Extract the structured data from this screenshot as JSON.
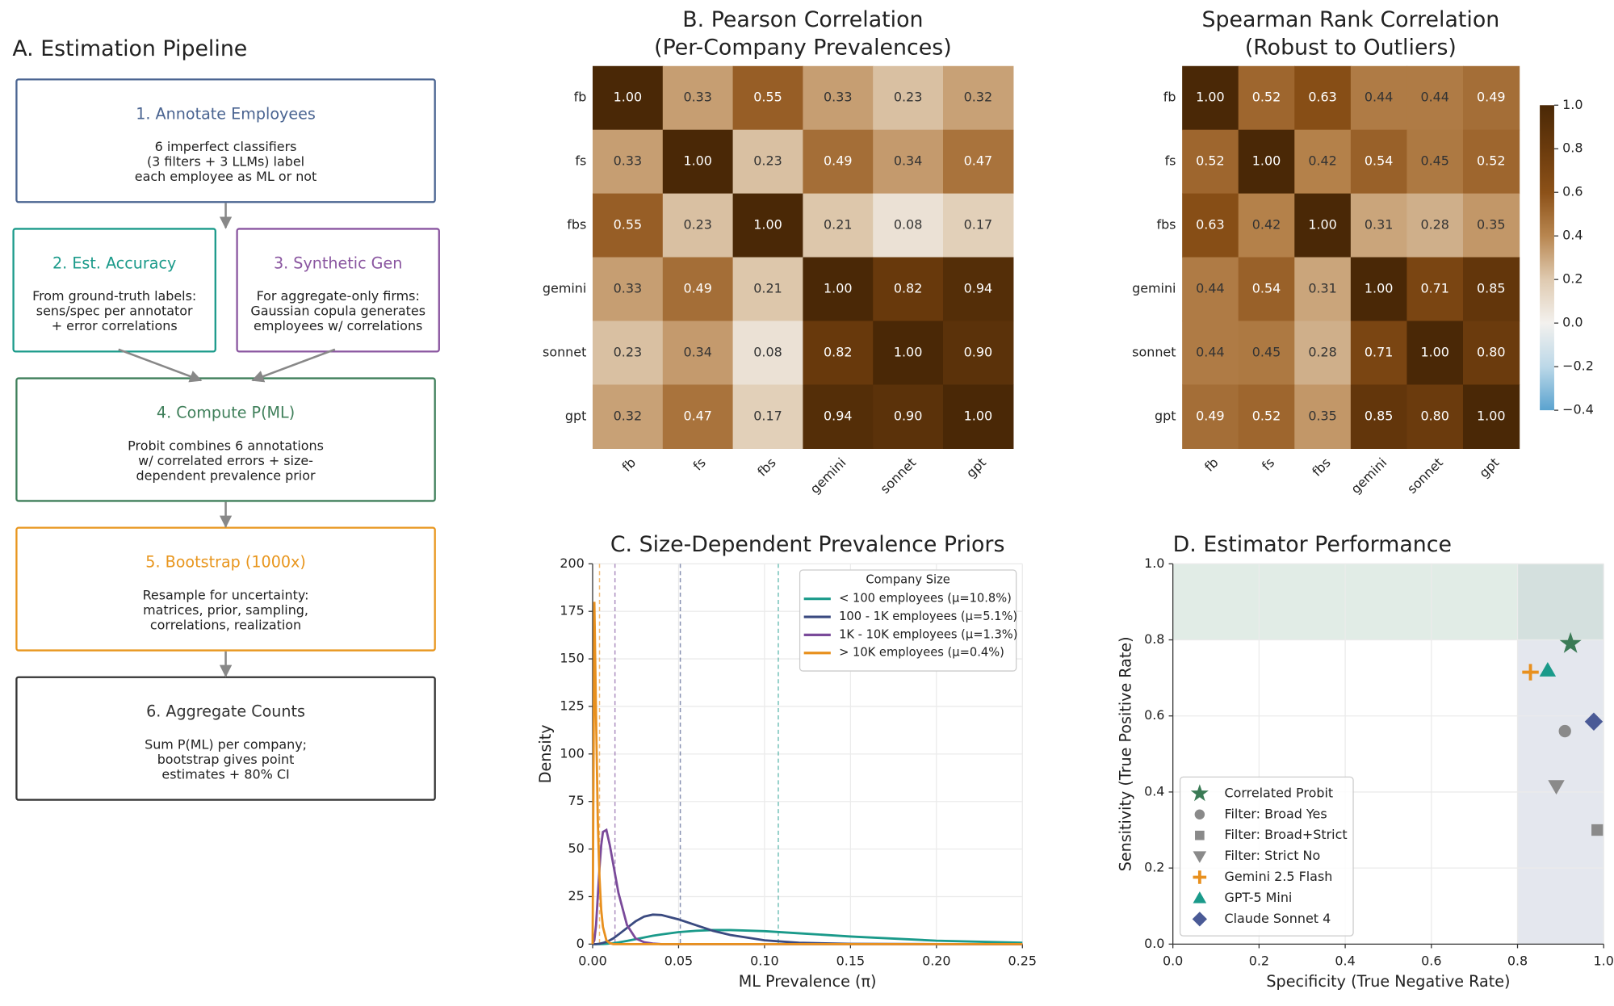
{
  "diagram": {
    "title": "A. Estimation Pipeline",
    "nodes": [
      {
        "title": "1. Annotate Employees",
        "body": [
          "6 imperfect classifiers",
          "(3 filters + 3 LLMs) label",
          "each employee as ML or not"
        ],
        "color": "#4a6491"
      },
      {
        "title": "2. Est. Accuracy",
        "body": [
          "From ground-truth labels:",
          "sens/spec per annotator",
          "+ error correlations"
        ],
        "color": "#1a9a8a"
      },
      {
        "title": "3. Synthetic Gen",
        "body": [
          "For aggregate-only firms:",
          "Gaussian copula generates",
          "employees w/ correlations"
        ],
        "color": "#8a56a0"
      },
      {
        "title": "4. Compute P(ML)",
        "body": [
          "Probit combines 6 annotations",
          "w/ correlated errors + size-",
          "dependent prevalence prior"
        ],
        "color": "#3f7f5a"
      },
      {
        "title": "5. Bootstrap (1000x)",
        "body": [
          "Resample for uncertainty:",
          "matrices, prior, sampling,",
          "correlations, realization"
        ],
        "color": "#e8961e"
      },
      {
        "title": "6. Aggregate Counts",
        "body": [
          "Sum P(ML) per company;",
          "bootstrap gives point",
          "estimates + 80% CI"
        ],
        "color": "#333333"
      }
    ]
  },
  "chart_data": [
    {
      "type": "heatmap",
      "title": [
        "B. Pearson Correlation",
        "(Per-Company Prevalences)"
      ],
      "labels": [
        "fb",
        "fs",
        "fbs",
        "gemini",
        "sonnet",
        "gpt"
      ],
      "values": [
        [
          1,
          0.33,
          0.55,
          0.33,
          0.23,
          0.32
        ],
        [
          0.33,
          1,
          0.23,
          0.49,
          0.34,
          0.47
        ],
        [
          0.55,
          0.23,
          1,
          0.21,
          0.08,
          0.17
        ],
        [
          0.33,
          0.49,
          0.21,
          1,
          0.82,
          0.94
        ],
        [
          0.23,
          0.34,
          0.08,
          0.82,
          1,
          0.9
        ],
        [
          0.32,
          0.47,
          0.17,
          0.94,
          0.9,
          1
        ]
      ],
      "value_labels": [
        [
          "1.00",
          "0.33",
          "0.55",
          "0.33",
          "0.23",
          "0.32"
        ],
        [
          "0.33",
          "1.00",
          "0.23",
          "0.49",
          "0.34",
          "0.47"
        ],
        [
          "0.55",
          "0.23",
          "1.00",
          "0.21",
          "0.08",
          "0.17"
        ],
        [
          "0.33",
          "0.49",
          "0.21",
          "1.00",
          "0.82",
          "0.94"
        ],
        [
          "0.23",
          "0.34",
          "0.08",
          "0.82",
          "1.00",
          "0.90"
        ],
        [
          "0.32",
          "0.47",
          "0.17",
          "0.94",
          "0.90",
          "1.00"
        ]
      ],
      "colormap": [
        {
          "value": -0.4,
          "color": "#5aa3cf"
        },
        {
          "value": -0.2,
          "color": "#bcd8e8"
        },
        {
          "value": 0,
          "color": "#f3f1ee"
        },
        {
          "value": 0.2,
          "color": "#dfcab0"
        },
        {
          "value": 0.4,
          "color": "#b88650"
        },
        {
          "value": 0.6,
          "color": "#8c5118"
        },
        {
          "value": 0.8,
          "color": "#6b3b0d"
        },
        {
          "value": 1,
          "color": "#4a2806"
        }
      ]
    },
    {
      "type": "heatmap",
      "title": [
        "Spearman Rank Correlation",
        "(Robust to Outliers)"
      ],
      "labels": [
        "fb",
        "fs",
        "fbs",
        "gemini",
        "sonnet",
        "gpt"
      ],
      "values": [
        [
          1,
          0.52,
          0.63,
          0.44,
          0.44,
          0.49
        ],
        [
          0.52,
          1,
          0.42,
          0.54,
          0.45,
          0.52
        ],
        [
          0.63,
          0.42,
          1,
          0.31,
          0.28,
          0.35
        ],
        [
          0.44,
          0.54,
          0.31,
          1,
          0.71,
          0.85
        ],
        [
          0.44,
          0.45,
          0.28,
          0.71,
          1,
          0.8
        ],
        [
          0.49,
          0.52,
          0.35,
          0.85,
          0.8,
          1
        ]
      ],
      "value_labels": [
        [
          "1.00",
          "0.52",
          "0.63",
          "0.44",
          "0.44",
          "0.49"
        ],
        [
          "0.52",
          "1.00",
          "0.42",
          "0.54",
          "0.45",
          "0.52"
        ],
        [
          "0.63",
          "0.42",
          "1.00",
          "0.31",
          "0.28",
          "0.35"
        ],
        [
          "0.44",
          "0.54",
          "0.31",
          "1.00",
          "0.71",
          "0.85"
        ],
        [
          "0.44",
          "0.45",
          "0.28",
          "0.71",
          "1.00",
          "0.80"
        ],
        [
          "0.49",
          "0.52",
          "0.35",
          "0.85",
          "0.80",
          "1.00"
        ]
      ],
      "colormap": [
        {
          "value": -0.4,
          "color": "#5aa3cf"
        },
        {
          "value": -0.2,
          "color": "#bcd8e8"
        },
        {
          "value": 0,
          "color": "#f3f1ee"
        },
        {
          "value": 0.2,
          "color": "#dfcab0"
        },
        {
          "value": 0.4,
          "color": "#b88650"
        },
        {
          "value": 0.6,
          "color": "#8c5118"
        },
        {
          "value": 0.8,
          "color": "#6b3b0d"
        },
        {
          "value": 1,
          "color": "#4a2806"
        }
      ],
      "colorbar": {
        "lim": [
          -0.4,
          1
        ],
        "ticks": [
          {
            "value": 1,
            "label": "1.0"
          },
          {
            "value": 0.8,
            "label": "0.8"
          },
          {
            "value": 0.6,
            "label": "0.6"
          },
          {
            "value": 0.4,
            "label": "0.4"
          },
          {
            "value": 0.2,
            "label": "0.2"
          },
          {
            "value": 0,
            "label": "0.0"
          },
          {
            "value": -0.2,
            "label": "−0.2"
          },
          {
            "value": -0.4,
            "label": "−0.4"
          }
        ]
      }
    },
    {
      "type": "line",
      "title": "C. Size-Dependent Prevalence Priors",
      "xlabel": "ML Prevalence (π)",
      "ylabel": "Density",
      "x": [
        0,
        0.001,
        0.002,
        0.003,
        0.004,
        0.005,
        0.006,
        0.008,
        0.01,
        0.012,
        0.015,
        0.02,
        0.025,
        0.03,
        0.035,
        0.04,
        0.05,
        0.06,
        0.07,
        0.08,
        0.1,
        0.12,
        0.15,
        0.2,
        0.25
      ],
      "series": [
        {
          "name": "< 100 employees (μ=10.8%)",
          "color": "#1a9a8a",
          "mean": 0.108,
          "values": [
            0,
            0,
            0,
            0,
            0.02,
            0.04,
            0.07,
            0.15,
            0.3,
            0.5,
            0.9,
            1.7,
            2.6,
            3.5,
            4.4,
            5.1,
            6.3,
            7,
            7.4,
            7.4,
            6.8,
            5.7,
            4,
            1.8,
            0.7
          ]
        },
        {
          "name": "100 - 1K employees (μ=5.1%)",
          "color": "#3a4a80",
          "mean": 0.051,
          "values": [
            0,
            0,
            0,
            0.1,
            0.2,
            0.4,
            0.6,
            1.2,
            2,
            3,
            5,
            8.5,
            12,
            14.5,
            15.5,
            15.3,
            13,
            10,
            7,
            4.8,
            2,
            0.7,
            0.15,
            0,
            0
          ]
        },
        {
          "name": "1K - 10K employees (μ=1.3%)",
          "color": "#7a4a9a",
          "mean": 0.013,
          "values": [
            0,
            2,
            10,
            25,
            40,
            52,
            59,
            60,
            52,
            42,
            27,
            10,
            3,
            1,
            0.3,
            0,
            0,
            0,
            0,
            0,
            0,
            0,
            0,
            0,
            0
          ]
        },
        {
          "name": "> 10K employees (μ=0.4%)",
          "color": "#e8901e",
          "mean": 0.004,
          "values": [
            0,
            180,
            120,
            65,
            35,
            18,
            9,
            2,
            0.5,
            0,
            0,
            0,
            0,
            0,
            0,
            0,
            0,
            0,
            0,
            0,
            0,
            0,
            0,
            0,
            0
          ]
        }
      ],
      "legend_title": "Company Size",
      "legend": "upper right",
      "grid": true,
      "xlim": [
        0,
        0.25
      ],
      "xticks": [
        {
          "value": 0,
          "label": "0.00"
        },
        {
          "value": 0.05,
          "label": "0.05"
        },
        {
          "value": 0.1,
          "label": "0.10"
        },
        {
          "value": 0.15,
          "label": "0.15"
        },
        {
          "value": 0.2,
          "label": "0.20"
        },
        {
          "value": 0.25,
          "label": "0.25"
        }
      ],
      "ylim": [
        0,
        200
      ],
      "yticks": [
        0,
        25,
        50,
        75,
        100,
        125,
        150,
        175,
        200
      ]
    },
    {
      "type": "scatter",
      "title": "D. Estimator Performance",
      "xlabel": "Specificity (True Negative Rate)",
      "ylabel": "Sensitivity (True Positive Rate)",
      "series": [
        {
          "name": "Correlated Probit",
          "color": "#3a7a55",
          "marker": "star",
          "x": [
            0.923
          ],
          "values": [
            0.79
          ]
        },
        {
          "name": "Filter: Broad Yes",
          "color": "#8a8a8a",
          "marker": "circle",
          "x": [
            0.91
          ],
          "values": [
            0.56
          ]
        },
        {
          "name": "Filter: Broad+Strict",
          "color": "#8a8a8a",
          "marker": "square",
          "x": [
            0.985
          ],
          "values": [
            0.3
          ]
        },
        {
          "name": "Filter: Strict No",
          "color": "#8a8a8a",
          "marker": "triangle-down",
          "x": [
            0.89
          ],
          "values": [
            0.415
          ]
        },
        {
          "name": "Gemini 2.5 Flash",
          "color": "#e8901e",
          "marker": "plus",
          "x": [
            0.83
          ],
          "values": [
            0.715
          ]
        },
        {
          "name": "GPT-5 Mini",
          "color": "#1a9a8a",
          "marker": "triangle-up",
          "x": [
            0.87
          ],
          "values": [
            0.72
          ]
        },
        {
          "name": "Claude Sonnet 4",
          "color": "#4a5a96",
          "marker": "diamond",
          "x": [
            0.977
          ],
          "values": [
            0.585
          ]
        }
      ],
      "shaded_regions": [
        {
          "axis": "x",
          "from": 0.8,
          "to": 1,
          "color": "#c9d0de"
        },
        {
          "axis": "y",
          "from": 0.8,
          "to": 1,
          "color": "#c4d9cd"
        }
      ],
      "legend": "lower left",
      "grid": true,
      "xlim": [
        0,
        1
      ],
      "xticks": [
        {
          "value": 0,
          "label": "0.0"
        },
        {
          "value": 0.2,
          "label": "0.2"
        },
        {
          "value": 0.4,
          "label": "0.4"
        },
        {
          "value": 0.6,
          "label": "0.6"
        },
        {
          "value": 0.8,
          "label": "0.8"
        },
        {
          "value": 1,
          "label": "1.0"
        }
      ],
      "ylim": [
        0,
        1
      ],
      "yticks": [
        {
          "value": 0,
          "label": "0.0"
        },
        {
          "value": 0.2,
          "label": "0.2"
        },
        {
          "value": 0.4,
          "label": "0.4"
        },
        {
          "value": 0.6,
          "label": "0.6"
        },
        {
          "value": 0.8,
          "label": "0.8"
        },
        {
          "value": 1,
          "label": "1.0"
        }
      ]
    }
  ]
}
